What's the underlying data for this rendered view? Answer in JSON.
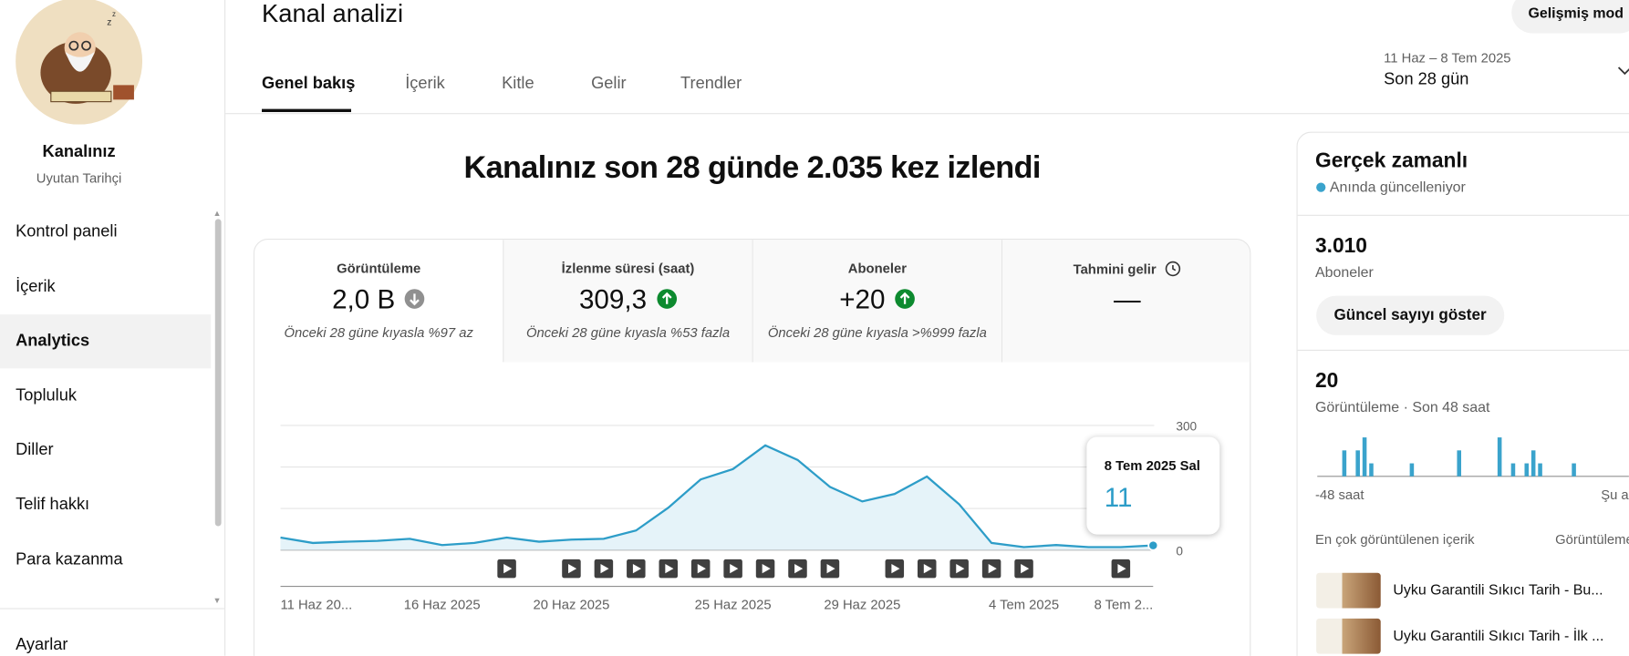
{
  "sidebar": {
    "channel_label": "Kanalınız",
    "channel_name": "Uyutan Tarihçi",
    "nav": [
      "Kontrol paneli",
      "İçerik",
      "Analytics",
      "Topluluk",
      "Diller",
      "Telif hakkı",
      "Para kazanma"
    ],
    "active_nav": 2,
    "settings": "Ayarlar"
  },
  "header": {
    "title": "Kanal analizi",
    "advanced_button": "Gelişmiş mod",
    "tabs": [
      "Genel bakış",
      "İçerik",
      "Kitle",
      "Gelir",
      "Trendler"
    ],
    "active_tab": 0,
    "date_range": "11 Haz – 8 Tem 2025",
    "period": "Son 28 gün"
  },
  "overview": {
    "headline": "Kanalınız son 28 günde 2.035 kez izlendi",
    "metrics": [
      {
        "label": "Görüntüleme",
        "value": "2,0 B",
        "trend": "down",
        "comparison": "Önceki 28 güne kıyasla %97 az"
      },
      {
        "label": "İzlenme süresi (saat)",
        "value": "309,3",
        "trend": "up",
        "comparison": "Önceki 28 güne kıyasla %53 fazla"
      },
      {
        "label": "Aboneler",
        "value": "+20",
        "trend": "up",
        "comparison": "Önceki 28 güne kıyasla >%999 fazla"
      },
      {
        "label": "Tahmini gelir",
        "value": "—"
      }
    ],
    "chart_data": {
      "type": "line",
      "color": "#2d9dc8",
      "fill": "#e5f3f9",
      "categories": [
        "11 Haz 20...",
        null,
        null,
        null,
        null,
        "16 Haz 2025",
        null,
        null,
        null,
        "20 Haz 2025",
        null,
        null,
        null,
        null,
        "25 Haz 2025",
        null,
        null,
        null,
        "29 Haz 2025",
        null,
        null,
        null,
        null,
        "4 Tem 2025",
        null,
        null,
        null,
        "8 Tem 2..."
      ],
      "values": [
        30,
        17,
        20,
        22,
        27,
        12,
        17,
        30,
        20,
        25,
        27,
        47,
        102,
        170,
        195,
        252,
        217,
        152,
        117,
        135,
        177,
        110,
        17,
        7,
        12,
        7,
        7,
        11
      ],
      "ylim": [
        0,
        300
      ],
      "yticks": [
        0,
        300
      ],
      "ygrid": [
        0,
        100,
        200,
        300
      ],
      "video_markers": [
        7,
        9,
        10,
        11,
        12,
        13,
        14,
        15,
        16,
        17,
        19,
        20,
        21,
        22,
        23,
        26
      ]
    },
    "tooltip": {
      "date": "8 Tem 2025 Sal",
      "index": 27
    }
  },
  "realtime": {
    "title": "Gerçek zamanlı",
    "status": "Anında güncelleniyor",
    "subscribers": {
      "value": "3.010",
      "label": "Aboneler"
    },
    "button": "Güncel sayıyı göster",
    "views": {
      "value": "20",
      "label": "Görüntüleme · Son 48 saat"
    },
    "chart_data": {
      "type": "bar",
      "color": "#3aa3cc",
      "values": [
        0,
        0,
        0,
        0,
        2,
        0,
        2,
        3,
        1,
        0,
        0,
        0,
        0,
        0,
        1,
        0,
        0,
        0,
        0,
        0,
        0,
        2,
        0,
        0,
        0,
        0,
        0,
        3,
        0,
        1,
        0,
        1,
        2,
        1,
        0,
        0,
        0,
        0,
        1,
        0,
        0,
        0,
        0,
        0,
        0,
        0,
        0,
        0
      ],
      "x_start_label": "-48 saat",
      "x_end_label": "Şu an"
    },
    "top_content": {
      "title": "En çok görüntülenen içerik",
      "column": "Görüntüleme",
      "items": [
        "Uyku Garantili Sıkıcı Tarih - Bu...",
        "Uyku Garantili Sıkıcı Tarih - İlk ..."
      ]
    }
  }
}
